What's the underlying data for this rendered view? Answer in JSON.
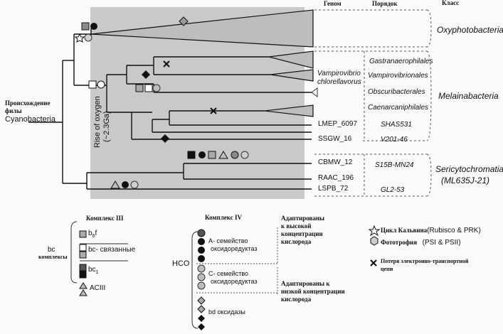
{
  "columns": {
    "genome": "Геном",
    "order": "Порядок",
    "class": "Класс"
  },
  "classes": {
    "oxyphoto": "Oxyphotobacteria",
    "melaina": "Melainabacteria",
    "sericy_1": "Sericytochromatia",
    "sericy_2": "(ML635J-21)"
  },
  "orders": {
    "gastra": "Gastranaerophilales",
    "vampiro_order": "Vampirovibrionales",
    "obscuri": "Obscuribacterales",
    "caenar": "Caenarcaniphilales",
    "shas": "SHAS531",
    "v201": "V201-46",
    "s15b": "S15B-MN24",
    "gl2": "GL2-53"
  },
  "genomes": {
    "vampiro_1": "Vampirovibrio",
    "vampiro_2": "chlorellavorus",
    "lmep": "LMEP_6097",
    "ssgw": "SSGW_16",
    "cbmw": "CBMW_12",
    "raac": "RAAC_196",
    "lspb": "LSPB_72"
  },
  "root": {
    "line1": "Происхождение",
    "line2": "филы",
    "line3": "Cyanobacteria"
  },
  "rise_oxygen": {
    "line1": "Rise of oxygen",
    "line2": "(~2.3Ga)"
  },
  "legend_complex3": {
    "title": "Комплекс  III",
    "group_1": "bc",
    "group_2": "комплексы",
    "b6f": "b",
    "b6f_sub": "6",
    "b6f_end": "f",
    "bc_related": "bc- связанные",
    "bc1": "bc",
    "bc1_sub": "1",
    "aciii": "ACIII"
  },
  "legend_complex4": {
    "title": "Комплекс   IV",
    "hco": "HCO",
    "a_family_1": "A- семейство",
    "a_family_2": "оксидоредуктаз",
    "c_family_1": "C- семейство",
    "c_family_2": "оксидоредуктаз",
    "bd_label": "bd   оксидазы",
    "high_1": "Адаптированы",
    "high_2": "к высокой",
    "high_3": "концентрации",
    "high_4": "кислорода",
    "low_1": "Адаптированы к",
    "low_2": "низкой концентрации",
    "low_3": "кислорода"
  },
  "legend_right": {
    "calvin_1": "Цикл Кальвина",
    "calvin_2": "(Rubisco & PRK)",
    "photo_1": "Фототрофия",
    "photo_2": "(PSI & PSII)",
    "loss_1": "Потеря электронно-транспортной",
    "loss_2": "цепи"
  },
  "colors": {
    "shade": "#c6c6c6",
    "dark": "#111111",
    "mid": "#8a8a8a",
    "light": "#bdbdbd"
  }
}
